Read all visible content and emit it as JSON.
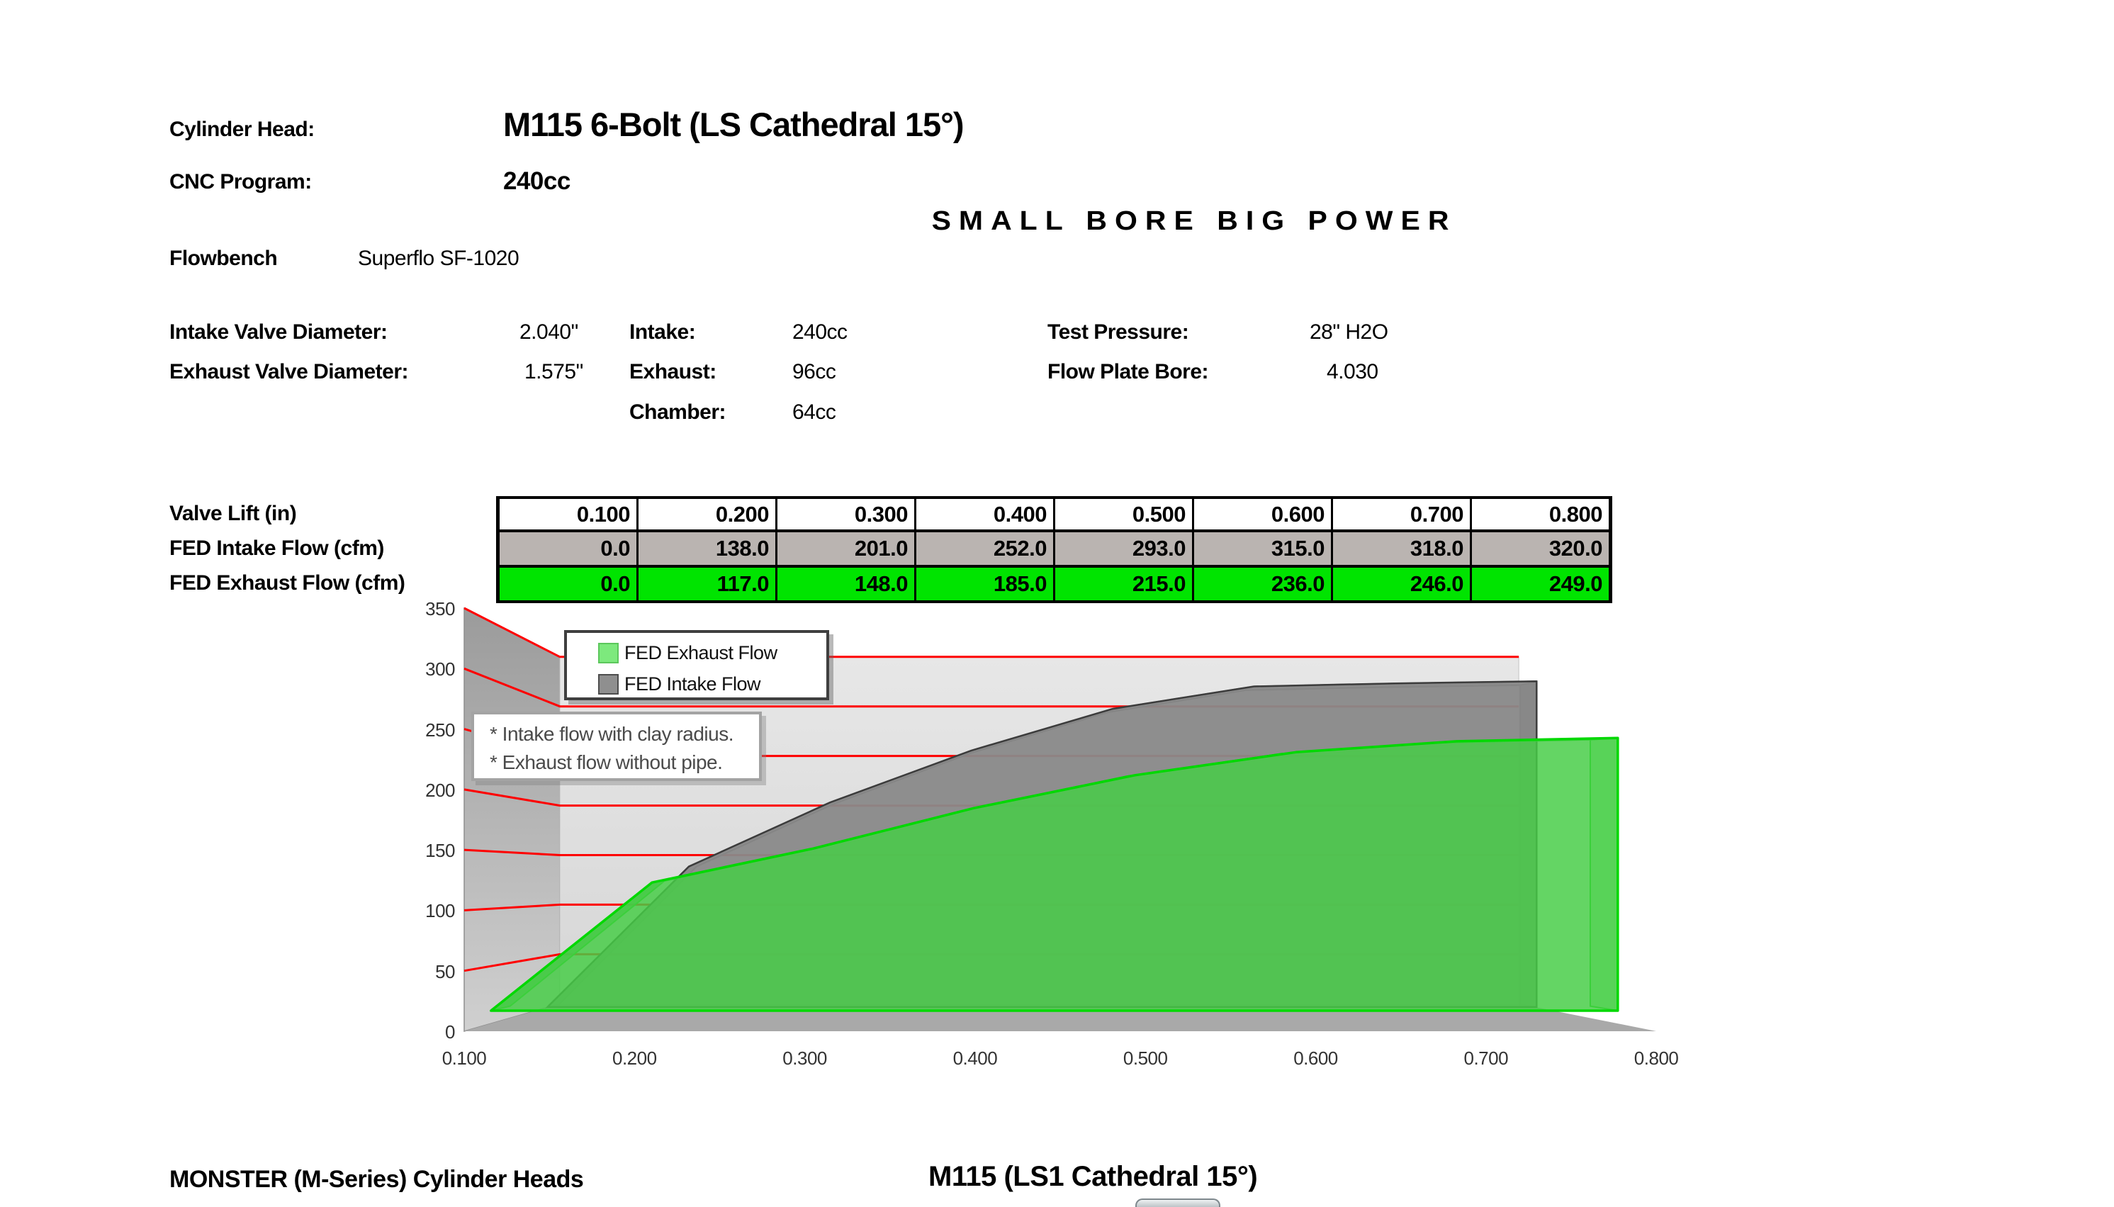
{
  "header": {
    "cylinder_head_label": "Cylinder Head:",
    "cylinder_head_value": "M115 6-Bolt (LS Cathedral 15°)",
    "cnc_program_label": "CNC Program:",
    "cnc_program_value": "240cc",
    "slogan": "SMALL BORE BIG POWER",
    "flowbench_label": "Flowbench",
    "flowbench_value": "Superflo SF-1020"
  },
  "specs": {
    "intake_valve_diameter_label": "Intake Valve Diameter:",
    "intake_valve_diameter_value": "2.040\"",
    "exhaust_valve_diameter_label": "Exhaust Valve Diameter:",
    "exhaust_valve_diameter_value": "1.575\"",
    "intake_label": "Intake:",
    "intake_value": "240cc",
    "exhaust_label": "Exhaust:",
    "exhaust_value": "96cc",
    "chamber_label": "Chamber:",
    "chamber_value": "64cc",
    "test_pressure_label": "Test Pressure:",
    "test_pressure_value": "28\" H2O",
    "flow_plate_bore_label": "Flow Plate Bore:",
    "flow_plate_bore_value": "4.030"
  },
  "flow_table": {
    "row_labels": [
      "Valve Lift (in)",
      "FED Intake Flow (cfm)",
      "FED Exhaust Flow (cfm)"
    ],
    "lift_values": [
      "0.100",
      "0.200",
      "0.300",
      "0.400",
      "0.500",
      "0.600",
      "0.700",
      "0.800"
    ],
    "intake_values": [
      "0.0",
      "138.0",
      "201.0",
      "252.0",
      "293.0",
      "315.0",
      "318.0",
      "320.0"
    ],
    "exhaust_values": [
      "0.0",
      "117.0",
      "148.0",
      "185.0",
      "215.0",
      "236.0",
      "246.0",
      "249.0"
    ],
    "intake_row_color": "#bab4b1",
    "exhaust_row_color": "#00e400"
  },
  "chart_data": {
    "type": "area",
    "style": "3d-area-excel",
    "x": [
      0.1,
      0.2,
      0.3,
      0.4,
      0.5,
      0.6,
      0.7,
      0.8
    ],
    "x_tick_labels": [
      "0.100",
      "0.200",
      "0.300",
      "0.400",
      "0.500",
      "0.600",
      "0.700",
      "0.800"
    ],
    "xlabel": "",
    "ylabel": "",
    "ylim": [
      0,
      350
    ],
    "y_ticks": [
      0,
      50,
      100,
      150,
      200,
      250,
      300,
      350
    ],
    "y_tick_labels": [
      "0",
      "50",
      "100",
      "150",
      "200",
      "250",
      "300",
      "350"
    ],
    "grid": true,
    "gridline_color": "#ff0000",
    "legend_position": "top-left-inside",
    "series": [
      {
        "name": "FED Exhaust Flow",
        "values": [
          0,
          117,
          148,
          185,
          215,
          236,
          246,
          249
        ],
        "color": "#46cd46",
        "outline": "#00d800",
        "legend_swatch": "#7de97d"
      },
      {
        "name": "FED Intake Flow",
        "values": [
          0,
          138,
          201,
          252,
          293,
          315,
          318,
          320
        ],
        "color": "#898989",
        "outline": "#3c3c3c",
        "legend_swatch": "#8f8f8f"
      }
    ],
    "annotation_lines": [
      "* Intake flow with clay radius.",
      "* Exhaust flow without pipe."
    ],
    "wall_color": "#dcdcdc",
    "floor_color": "#a9a9a9"
  },
  "footer": {
    "left": "MONSTER (M-Series) Cylinder Heads",
    "right": "M115 (LS1 Cathedral 15°)"
  }
}
